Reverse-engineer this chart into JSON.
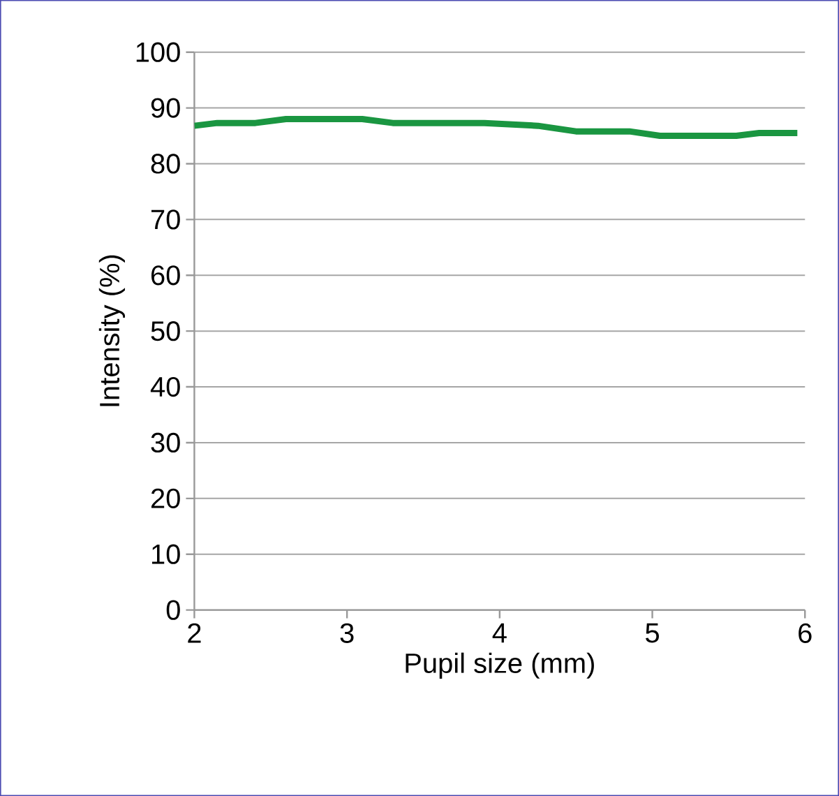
{
  "chart_data": {
    "type": "line",
    "xlabel": "Pupil size (mm)",
    "ylabel": "Intensity (%)",
    "x": [
      2,
      2.15,
      2.4,
      2.6,
      3.1,
      3.3,
      3.9,
      4.25,
      4.5,
      4.85,
      5.05,
      5.55,
      5.7,
      5.95
    ],
    "series": [
      {
        "color": "#1a9641",
        "values": [
          86.8,
          87.3,
          87.3,
          88,
          88,
          87.3,
          87.3,
          86.8,
          85.8,
          85.8,
          85,
          85,
          85.5,
          85.5
        ]
      }
    ],
    "xlim": [
      2,
      6
    ],
    "xticks": [
      2,
      3,
      4,
      5,
      6
    ],
    "ylim": [
      0,
      100
    ],
    "yticks": [
      0,
      10,
      20,
      30,
      40,
      50,
      60,
      70,
      80,
      90,
      100
    ],
    "grid": "y",
    "marker": "none",
    "line_style": "solid"
  }
}
